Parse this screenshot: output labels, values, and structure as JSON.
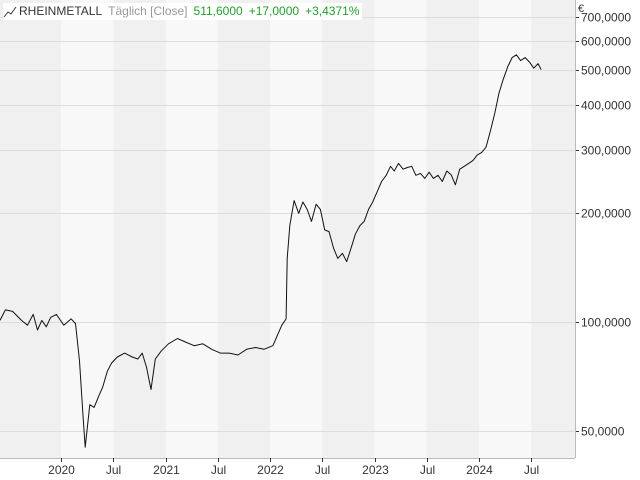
{
  "header": {
    "instrument": "RHEINMETALL",
    "interval": "Täglich [Close]",
    "last": "511,6000",
    "change": "+17,0000",
    "change_pct": "+3,4371%"
  },
  "currency": "€",
  "colors": {
    "line": "#111111",
    "change_positive": "#22a02e",
    "band_light": "#f8f8f8",
    "band_dark": "#f0f0f0",
    "grid": "#dddddd",
    "axis_text": "#333333"
  },
  "chart_data": {
    "type": "line",
    "scale": "log",
    "ylim": [
      42,
      780
    ],
    "xlim": [
      "2019-06-01",
      "2024-12-01"
    ],
    "y_ticks": [
      {
        "value": 50,
        "label": "50,0000"
      },
      {
        "value": 100,
        "label": "100,0000"
      },
      {
        "value": 200,
        "label": "200,0000"
      },
      {
        "value": 300,
        "label": "300,0000"
      },
      {
        "value": 400,
        "label": "400,0000"
      },
      {
        "value": 500,
        "label": "500,0000"
      },
      {
        "value": 600,
        "label": "600,0000"
      },
      {
        "value": 700,
        "label": "700,0000"
      }
    ],
    "x_ticks": [
      {
        "date": "2020-01-01",
        "label": "2020"
      },
      {
        "date": "2020-07-01",
        "label": "Jul"
      },
      {
        "date": "2021-01-01",
        "label": "2021"
      },
      {
        "date": "2021-07-01",
        "label": "Jul"
      },
      {
        "date": "2022-01-01",
        "label": "2022"
      },
      {
        "date": "2022-07-01",
        "label": "Jul"
      },
      {
        "date": "2023-01-01",
        "label": "2023"
      },
      {
        "date": "2023-07-01",
        "label": "Jul"
      },
      {
        "date": "2024-01-01",
        "label": "2024"
      },
      {
        "date": "2024-07-01",
        "label": "Jul"
      }
    ],
    "bands": [
      "2019-06-01",
      "2020-01-01",
      "2020-07-01",
      "2021-01-01",
      "2021-07-01",
      "2022-01-01",
      "2022-07-01",
      "2023-01-01",
      "2023-07-01",
      "2024-01-01",
      "2024-07-01",
      "2024-12-01"
    ],
    "series": [
      {
        "x": [
          "2019-06-01",
          "2019-06-20",
          "2019-07-15",
          "2019-08-15",
          "2019-09-05",
          "2019-09-25",
          "2019-10-10",
          "2019-10-25",
          "2019-11-10",
          "2019-11-25",
          "2019-12-15",
          "2020-01-10",
          "2020-02-05",
          "2020-02-20",
          "2020-03-05",
          "2020-03-18",
          "2020-03-25",
          "2020-04-10",
          "2020-04-25",
          "2020-05-10",
          "2020-05-25",
          "2020-06-10",
          "2020-06-25",
          "2020-07-15",
          "2020-08-10",
          "2020-09-05",
          "2020-09-25",
          "2020-10-10",
          "2020-10-25",
          "2020-11-10",
          "2020-11-25",
          "2020-12-15",
          "2021-01-10",
          "2021-02-10",
          "2021-03-10",
          "2021-04-10",
          "2021-05-10",
          "2021-06-10",
          "2021-07-10",
          "2021-08-10",
          "2021-09-10",
          "2021-10-10",
          "2021-11-10",
          "2021-12-10",
          "2022-01-10",
          "2022-02-10",
          "2022-02-25",
          "2022-03-01",
          "2022-03-10",
          "2022-03-25",
          "2022-04-10",
          "2022-04-25",
          "2022-05-10",
          "2022-05-25",
          "2022-06-10",
          "2022-06-25",
          "2022-07-10",
          "2022-07-25",
          "2022-08-10",
          "2022-08-25",
          "2022-09-10",
          "2022-09-25",
          "2022-10-10",
          "2022-10-25",
          "2022-11-10",
          "2022-11-25",
          "2022-12-10",
          "2022-12-25",
          "2023-01-10",
          "2023-01-25",
          "2023-02-10",
          "2023-02-25",
          "2023-03-10",
          "2023-03-25",
          "2023-04-10",
          "2023-04-25",
          "2023-05-10",
          "2023-05-25",
          "2023-06-10",
          "2023-06-25",
          "2023-07-10",
          "2023-07-25",
          "2023-08-10",
          "2023-08-25",
          "2023-09-10",
          "2023-09-25",
          "2023-10-10",
          "2023-10-25",
          "2023-11-10",
          "2023-11-25",
          "2023-12-10",
          "2023-12-25",
          "2024-01-10",
          "2024-01-25",
          "2024-02-10",
          "2024-02-25",
          "2024-03-10",
          "2024-03-25",
          "2024-04-10",
          "2024-04-25",
          "2024-05-10",
          "2024-05-25",
          "2024-06-10",
          "2024-06-25",
          "2024-07-10",
          "2024-07-25",
          "2024-08-05"
        ],
        "values": [
          101,
          108,
          107,
          101,
          98,
          105,
          95,
          101,
          97,
          103,
          105,
          98,
          102,
          99,
          78,
          54,
          45,
          59,
          58,
          62,
          66,
          73,
          77,
          80,
          82,
          80,
          79,
          82,
          75,
          65,
          79,
          83,
          87,
          90,
          88,
          86,
          87,
          84,
          82,
          82,
          81,
          84,
          85,
          84,
          86,
          98,
          102,
          150,
          185,
          217,
          200,
          215,
          205,
          190,
          212,
          205,
          180,
          178,
          160,
          150,
          155,
          147,
          160,
          175,
          185,
          190,
          205,
          215,
          230,
          245,
          255,
          270,
          262,
          275,
          265,
          268,
          270,
          255,
          258,
          250,
          260,
          250,
          255,
          245,
          262,
          256,
          240,
          265,
          270,
          275,
          280,
          290,
          295,
          305,
          340,
          380,
          430,
          470,
          510,
          540,
          550,
          530,
          540,
          525,
          505,
          520,
          500
        ]
      }
    ]
  }
}
